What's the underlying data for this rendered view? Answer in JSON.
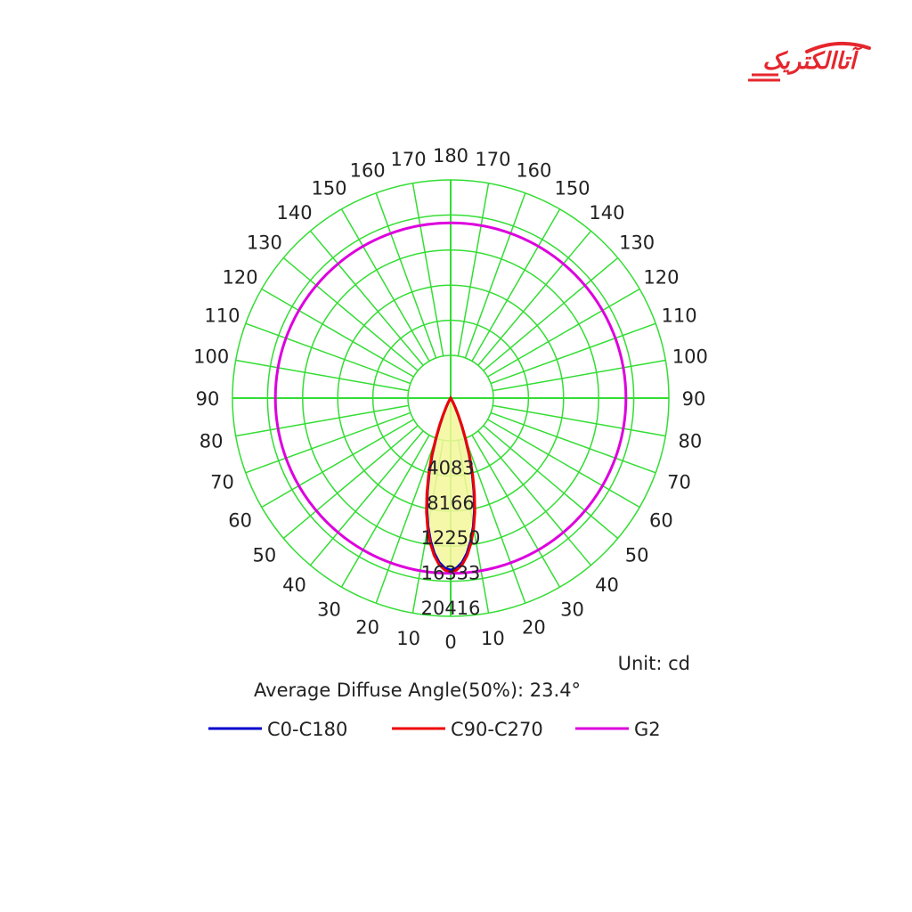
{
  "brand": {
    "logo_text": "آتاالکتریک",
    "color": "#e5262c"
  },
  "chart_data": {
    "type": "polar",
    "title": "",
    "unit_label": "Unit: cd",
    "diffuse_angle_label": "Average Diffuse Angle(50%): 23.4°",
    "radial_ticks": [
      4083,
      8166,
      12250,
      16333,
      20416
    ],
    "radial_max": 20416,
    "angle_ticks_left": [
      0,
      10,
      20,
      30,
      40,
      50,
      60,
      70,
      80,
      90,
      100,
      110,
      120,
      130,
      140,
      150,
      160,
      170,
      180
    ],
    "angle_ticks_right": [
      10,
      20,
      30,
      40,
      50,
      60,
      70,
      80,
      90,
      100,
      110,
      120,
      130,
      140,
      150,
      160,
      170
    ],
    "grid": true,
    "grid_color": "#33dd33",
    "series": [
      {
        "name": "C0-C180",
        "color": "#0000cc",
        "angles": [
          0,
          2,
          4,
          6,
          8,
          10,
          12,
          14,
          16,
          18,
          20,
          22,
          24,
          26,
          28,
          30,
          35,
          40
        ],
        "values": [
          16100,
          15900,
          15400,
          14600,
          13500,
          12200,
          10700,
          9000,
          7300,
          5600,
          4000,
          2700,
          1700,
          1000,
          550,
          280,
          60,
          0
        ]
      },
      {
        "name": "C90-C270",
        "color": "#ee0000",
        "angles": [
          0,
          2,
          4,
          6,
          8,
          10,
          12,
          14,
          16,
          18,
          20,
          22,
          24,
          26,
          28,
          30,
          35,
          40
        ],
        "values": [
          16300,
          16100,
          15600,
          14800,
          13700,
          12400,
          10900,
          9200,
          7500,
          5800,
          4200,
          2850,
          1800,
          1050,
          580,
          300,
          70,
          0
        ]
      },
      {
        "name": "G2",
        "color": "#dd00dd",
        "shape": "circle",
        "value": 16400
      }
    ],
    "legend_position": "bottom"
  }
}
